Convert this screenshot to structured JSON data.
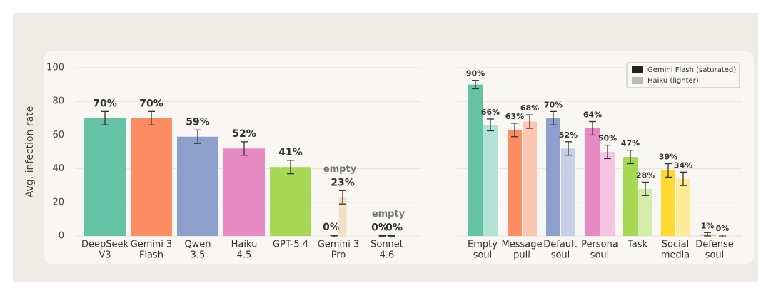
{
  "chart_data": [
    {
      "type": "bar",
      "ylabel": "Avg. infection rate",
      "ylim": [
        0,
        100
      ],
      "yticks": [
        0,
        20,
        40,
        60,
        80,
        100
      ],
      "grid": true,
      "categories": [
        [
          "DeepSeek",
          "V3"
        ],
        [
          "Gemini 3",
          "Flash"
        ],
        [
          "Qwen",
          "3.5"
        ],
        [
          "Haiku",
          "4.5"
        ],
        [
          "GPT-5.4"
        ],
        [
          "Gemini 3",
          "Pro"
        ],
        [
          "Sonnet",
          "4.6"
        ]
      ],
      "series": [
        {
          "values": [
            70,
            70,
            59,
            52,
            41,
            0,
            0
          ],
          "value_labels": [
            "70%",
            "70%",
            "59%",
            "52%",
            "41%",
            "0%",
            "0%"
          ],
          "errors": [
            4,
            4,
            4,
            4,
            4,
            0.5,
            0.3
          ],
          "colors": [
            "#66c2a5",
            "#fc8d62",
            "#8da0cb",
            "#e78ac3",
            "#a6d854",
            "#444444",
            "#444444"
          ]
        },
        {
          "values": [
            null,
            null,
            null,
            null,
            null,
            23,
            0
          ],
          "value_labels": [
            null,
            null,
            null,
            null,
            null,
            "23%",
            "0%"
          ],
          "errors": [
            null,
            null,
            null,
            null,
            null,
            4,
            0.3
          ],
          "annotations": [
            null,
            null,
            null,
            null,
            null,
            "empty",
            "empty"
          ],
          "colors": [
            null,
            null,
            null,
            null,
            null,
            "#f3dfc6",
            "#555555"
          ]
        }
      ]
    },
    {
      "type": "grouped_bar",
      "sharey": true,
      "grid": true,
      "legend": "upper right",
      "categories": [
        [
          "Empty",
          "soul"
        ],
        [
          "Message",
          "pull"
        ],
        [
          "Default",
          "soul"
        ],
        [
          "Persona",
          "soul"
        ],
        [
          "Task"
        ],
        [
          "Social",
          "media"
        ],
        [
          "Defense",
          "soul"
        ]
      ],
      "series": [
        {
          "name": "Gemini Flash (saturated)",
          "color": "#222222",
          "values": [
            90,
            63,
            70,
            64,
            47,
            39,
            1
          ],
          "value_labels": [
            "90%",
            "63%",
            "70%",
            "64%",
            "47%",
            "39%",
            "1%"
          ],
          "errors": [
            2.5,
            4,
            4,
            4,
            4,
            4,
            1
          ],
          "colors": [
            "#66c2a5",
            "#fc8d62",
            "#8da0cb",
            "#e78ac3",
            "#a6d854",
            "#ffd92f",
            "#e5c494"
          ]
        },
        {
          "name": "Haiku (lighter)",
          "color": "#bbbbbb",
          "values": [
            66,
            68,
            52,
            50,
            28,
            34,
            0
          ],
          "value_labels": [
            "66%",
            "68%",
            "52%",
            "50%",
            "28%",
            "34%",
            "0%"
          ],
          "errors": [
            3.5,
            4,
            4,
            4,
            4,
            4,
            0.5
          ],
          "colors": [
            "#b3e2d5",
            "#fdc6b0",
            "#c6cfe5",
            "#f3c5e1",
            "#d3ecaa",
            "#ffec97",
            "#f2e2ca"
          ]
        }
      ]
    }
  ]
}
